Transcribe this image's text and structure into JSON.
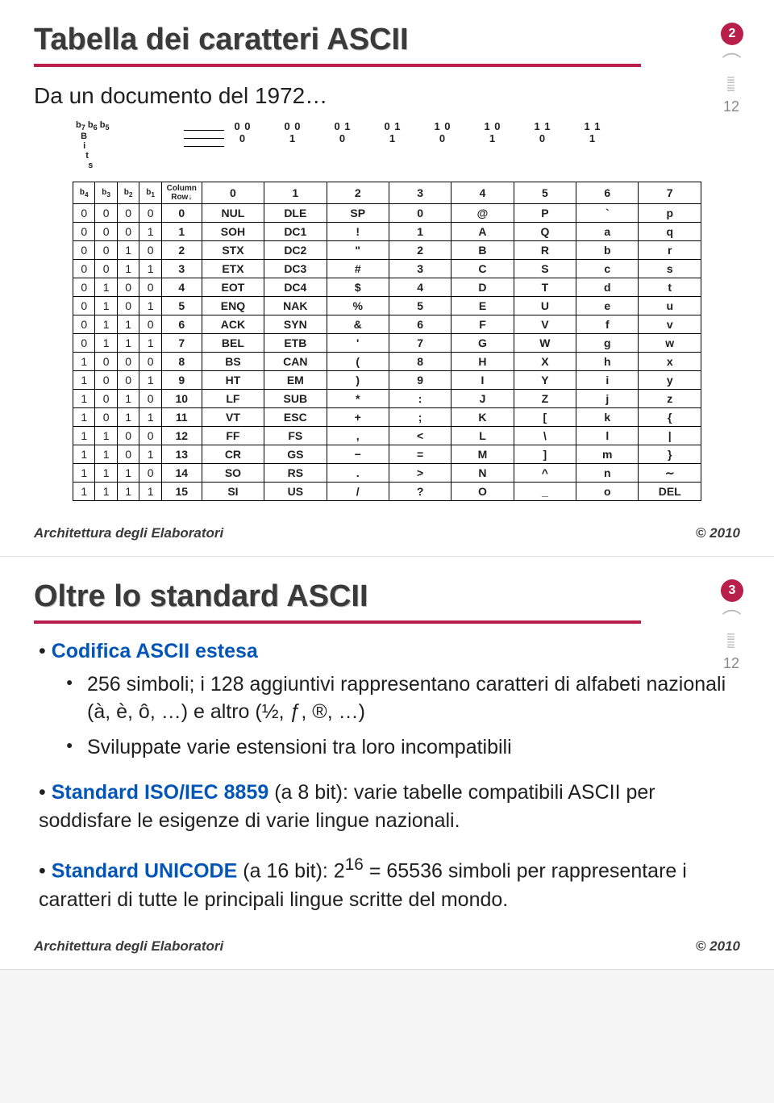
{
  "slide1": {
    "title": "Tabella dei caratteri ASCII",
    "title_border_color": "#b81f4b",
    "badge": {
      "num": "2",
      "bg": "#b81f4b"
    },
    "side": {
      "num": "12"
    },
    "subtitle": "Da un documento del 1972…",
    "footer_left": "Architettura degli Elaboratori",
    "footer_right": "© 2010",
    "ascii": {
      "column_bits": [
        "0 0 0",
        "0 0 1",
        "0 1 0",
        "0 1 1",
        "1 0 0",
        "1 0 1",
        "1 1 0",
        "1 1 1"
      ],
      "bit_labels": [
        "b₇",
        "b₆",
        "b₅",
        "b₄",
        "b₃",
        "b₂",
        "b₁"
      ],
      "col_labels": [
        "0",
        "1",
        "2",
        "3",
        "4",
        "5",
        "6",
        "7"
      ],
      "column_header_word": "Column",
      "row_header_word": "Row↓",
      "rows": [
        {
          "b": [
            "0",
            "0",
            "0",
            "0"
          ],
          "r": "0",
          "c": [
            "NUL",
            "DLE",
            "SP",
            "0",
            "@",
            "P",
            "`",
            "p"
          ]
        },
        {
          "b": [
            "0",
            "0",
            "0",
            "1"
          ],
          "r": "1",
          "c": [
            "SOH",
            "DC1",
            "!",
            "1",
            "A",
            "Q",
            "a",
            "q"
          ]
        },
        {
          "b": [
            "0",
            "0",
            "1",
            "0"
          ],
          "r": "2",
          "c": [
            "STX",
            "DC2",
            "\"",
            "2",
            "B",
            "R",
            "b",
            "r"
          ]
        },
        {
          "b": [
            "0",
            "0",
            "1",
            "1"
          ],
          "r": "3",
          "c": [
            "ETX",
            "DC3",
            "#",
            "3",
            "C",
            "S",
            "c",
            "s"
          ]
        },
        {
          "b": [
            "0",
            "1",
            "0",
            "0"
          ],
          "r": "4",
          "c": [
            "EOT",
            "DC4",
            "$",
            "4",
            "D",
            "T",
            "d",
            "t"
          ]
        },
        {
          "b": [
            "0",
            "1",
            "0",
            "1"
          ],
          "r": "5",
          "c": [
            "ENQ",
            "NAK",
            "%",
            "5",
            "E",
            "U",
            "e",
            "u"
          ]
        },
        {
          "b": [
            "0",
            "1",
            "1",
            "0"
          ],
          "r": "6",
          "c": [
            "ACK",
            "SYN",
            "&",
            "6",
            "F",
            "V",
            "f",
            "v"
          ]
        },
        {
          "b": [
            "0",
            "1",
            "1",
            "1"
          ],
          "r": "7",
          "c": [
            "BEL",
            "ETB",
            "'",
            "7",
            "G",
            "W",
            "g",
            "w"
          ]
        },
        {
          "b": [
            "1",
            "0",
            "0",
            "0"
          ],
          "r": "8",
          "c": [
            "BS",
            "CAN",
            "(",
            "8",
            "H",
            "X",
            "h",
            "x"
          ]
        },
        {
          "b": [
            "1",
            "0",
            "0",
            "1"
          ],
          "r": "9",
          "c": [
            "HT",
            "EM",
            ")",
            "9",
            "I",
            "Y",
            "i",
            "y"
          ]
        },
        {
          "b": [
            "1",
            "0",
            "1",
            "0"
          ],
          "r": "10",
          "c": [
            "LF",
            "SUB",
            "*",
            ":",
            "J",
            "Z",
            "j",
            "z"
          ]
        },
        {
          "b": [
            "1",
            "0",
            "1",
            "1"
          ],
          "r": "11",
          "c": [
            "VT",
            "ESC",
            "+",
            ";",
            "K",
            "[",
            "k",
            "{"
          ]
        },
        {
          "b": [
            "1",
            "1",
            "0",
            "0"
          ],
          "r": "12",
          "c": [
            "FF",
            "FS",
            ",",
            "<",
            "L",
            "\\",
            "l",
            "|"
          ]
        },
        {
          "b": [
            "1",
            "1",
            "0",
            "1"
          ],
          "r": "13",
          "c": [
            "CR",
            "GS",
            "−",
            "=",
            "M",
            "]",
            "m",
            "}"
          ]
        },
        {
          "b": [
            "1",
            "1",
            "1",
            "0"
          ],
          "r": "14",
          "c": [
            "SO",
            "RS",
            ".",
            ">",
            "N",
            "^",
            "n",
            "∼"
          ]
        },
        {
          "b": [
            "1",
            "1",
            "1",
            "1"
          ],
          "r": "15",
          "c": [
            "SI",
            "US",
            "/",
            "?",
            "O",
            "_",
            "o",
            "DEL"
          ]
        }
      ]
    }
  },
  "slide2": {
    "title": "Oltre lo standard ASCII",
    "title_border_color": "#b81f4b",
    "badge": {
      "num": "3",
      "bg": "#b81f4b"
    },
    "side": {
      "num": "12"
    },
    "bullets": {
      "h1": "Codifica ASCII estesa",
      "b1": "256 simboli; i 128 aggiuntivi rappresentano caratteri di alfabeti nazionali (à, è, ô, …) e altro (½, ƒ, ®, …)",
      "b2": "Sviluppate varie estensioni tra loro incompatibili"
    },
    "p1_lead": "Standard ISO/IEC 8859",
    "p1_rest": " (a 8 bit): varie tabelle compatibili ASCII per soddisfare le esigenze di varie lingue nazionali.",
    "p2_lead": "Standard UNICODE",
    "p2_rest_a": " (a 16 bit): 2",
    "p2_sup": "16",
    "p2_rest_b": " = 65536 simboli per rappresentare i caratteri di tutte le principali lingue scritte del mondo.",
    "footer_left": "Architettura degli Elaboratori",
    "footer_right": "© 2010"
  }
}
